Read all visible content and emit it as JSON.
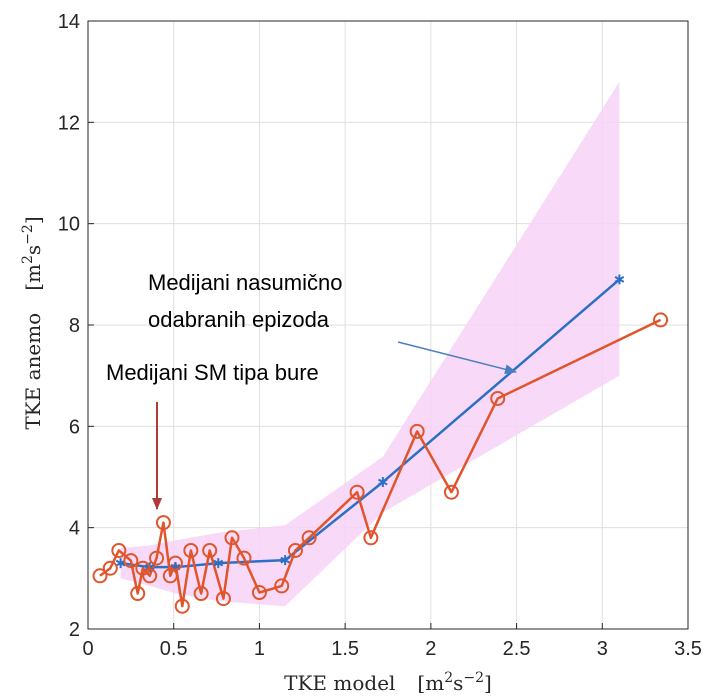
{
  "chart_data": {
    "type": "line",
    "xlabel": {
      "main": "TKE model",
      "unit": "m",
      "unit_sup1": "2",
      "unit_mid": "s",
      "unit_sup2": "−2"
    },
    "ylabel": {
      "main": "TKE anemo",
      "unit": "m",
      "unit_sup1": "2",
      "unit_mid": "s",
      "unit_sup2": "−2"
    },
    "xlim": [
      0,
      3.5
    ],
    "ylim": [
      2,
      14
    ],
    "xticks": [
      0,
      0.5,
      1,
      1.5,
      2,
      2.5,
      3,
      3.5
    ],
    "xtick_labels": [
      "0",
      "0.5",
      "1",
      "1.5",
      "2",
      "2.5",
      "3",
      "3.5"
    ],
    "yticks": [
      2,
      4,
      6,
      8,
      10,
      12,
      14
    ],
    "ytick_labels": [
      "2",
      "4",
      "6",
      "8",
      "10",
      "12",
      "14"
    ],
    "grid": true,
    "band": {
      "color": "#f7d4f7",
      "upper": [
        [
          0.19,
          3.6
        ],
        [
          0.36,
          3.65
        ],
        [
          0.51,
          3.75
        ],
        [
          0.76,
          3.9
        ],
        [
          1.15,
          4.05
        ],
        [
          1.72,
          5.4
        ],
        [
          3.1,
          12.8
        ]
      ],
      "lower": [
        [
          3.1,
          7.0
        ],
        [
          1.72,
          4.3
        ],
        [
          1.15,
          2.45
        ],
        [
          0.76,
          2.55
        ],
        [
          0.51,
          2.7
        ],
        [
          0.36,
          2.85
        ],
        [
          0.19,
          3.0
        ]
      ]
    },
    "series": [
      {
        "color": "#2d6fc4",
        "marker": "asterisk",
        "x": [
          0.19,
          0.36,
          0.51,
          0.76,
          1.15,
          1.72,
          3.1
        ],
        "y": [
          3.3,
          3.22,
          3.22,
          3.3,
          3.36,
          4.9,
          8.9
        ]
      },
      {
        "color": "#e0552b",
        "marker": "circle",
        "x": [
          0.07,
          0.13,
          0.18,
          0.25,
          0.29,
          0.32,
          0.36,
          0.4,
          0.44,
          0.48,
          0.51,
          0.55,
          0.6,
          0.66,
          0.71,
          0.79,
          0.84,
          0.91,
          1.0,
          1.13,
          1.21,
          1.29,
          1.57,
          1.65,
          1.92,
          2.12,
          2.39,
          3.34
        ],
        "y": [
          3.05,
          3.2,
          3.55,
          3.35,
          2.7,
          3.2,
          3.05,
          3.4,
          4.1,
          3.05,
          3.3,
          2.45,
          3.55,
          2.7,
          3.55,
          2.6,
          3.8,
          3.4,
          2.72,
          2.85,
          3.55,
          3.8,
          4.7,
          3.8,
          5.9,
          4.7,
          6.55,
          8.1
        ]
      }
    ],
    "annotations": [
      {
        "text": "Medijani nasumično",
        "line": 1
      },
      {
        "text": "odabranih epizoda",
        "line": 2
      },
      {
        "text": "Medijani SM tipa bure",
        "line": 3
      }
    ]
  }
}
